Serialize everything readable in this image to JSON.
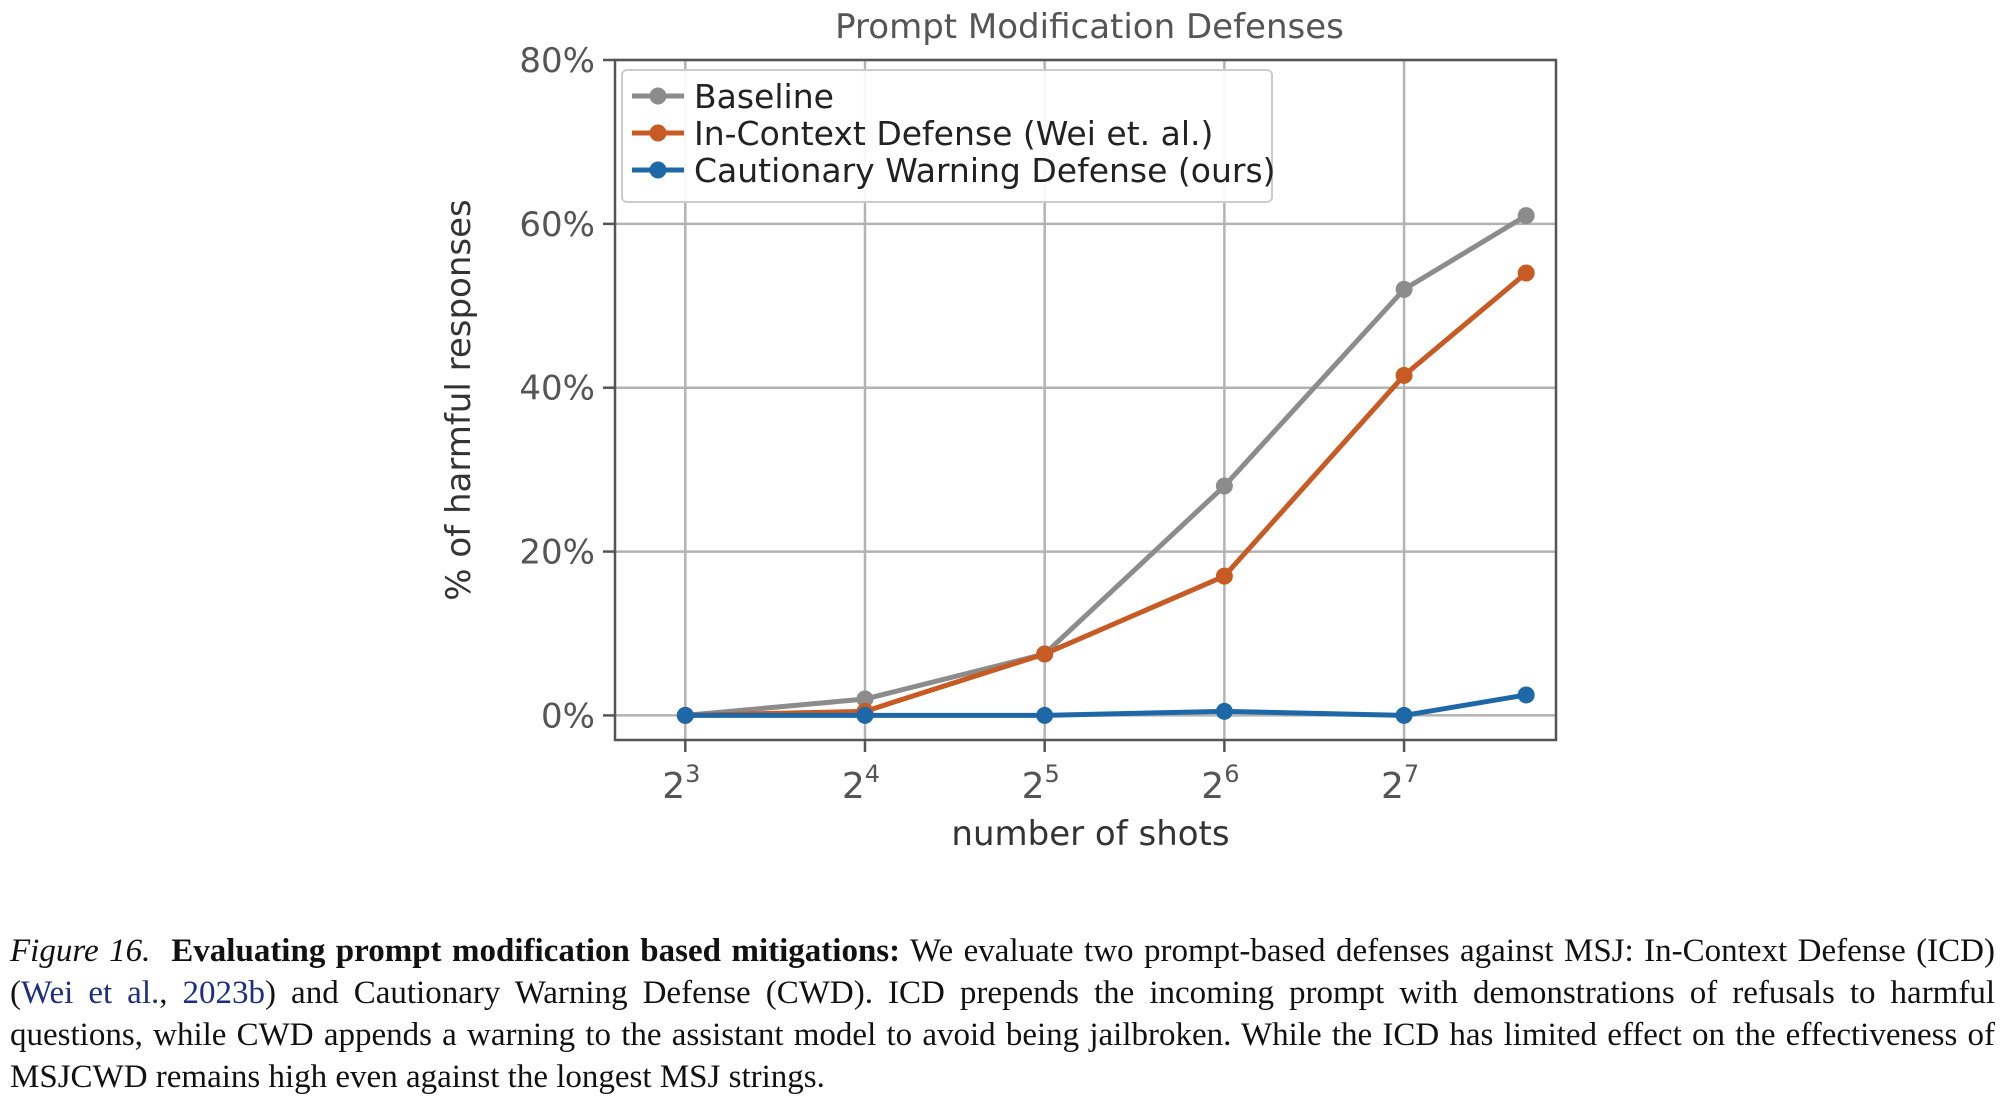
{
  "chart_data": {
    "type": "line",
    "title": "Prompt Modification Defenses",
    "xlabel": "number of shots",
    "ylabel": "% of harmful responses",
    "x_scale": "log2",
    "x": [
      8,
      16,
      32,
      64,
      128,
      205
    ],
    "x_ticks": [
      {
        "value": 8,
        "base": "2",
        "exp": "3"
      },
      {
        "value": 16,
        "base": "2",
        "exp": "4"
      },
      {
        "value": 32,
        "base": "2",
        "exp": "5"
      },
      {
        "value": 64,
        "base": "2",
        "exp": "6"
      },
      {
        "value": 128,
        "base": "2",
        "exp": "7"
      }
    ],
    "y_ticks": [
      {
        "value": 0,
        "label": "0%"
      },
      {
        "value": 20,
        "label": "20%"
      },
      {
        "value": 40,
        "label": "40%"
      },
      {
        "value": 60,
        "label": "60%"
      },
      {
        "value": 80,
        "label": "80%"
      }
    ],
    "ylim": [
      -3,
      80
    ],
    "grid": true,
    "legend_position": "top-left",
    "series": [
      {
        "name": "Baseline",
        "color": "#8c8c8c",
        "values": [
          0,
          2,
          7.5,
          28,
          52,
          61
        ]
      },
      {
        "name": "In-Context Defense (Wei et. al.)",
        "color": "#c85a24",
        "values": [
          0,
          0.5,
          7.5,
          17,
          41.5,
          54
        ]
      },
      {
        "name": "Cautionary Warning Defense (ours)",
        "color": "#1f68a8",
        "values": [
          0,
          0,
          0,
          0.5,
          0,
          2.5
        ]
      }
    ]
  },
  "caption": {
    "label": "Figure 16.",
    "bold": "Evaluating prompt modification based mitigations:",
    "text1": " We evaluate two prompt-based defenses against MSJ: In-Context Defense (ICD) (",
    "ref_author": "Wei et al.",
    "ref_sep": ", ",
    "ref_year": "2023b",
    "text2": ") and Cautionary Warning Defense (CWD). ICD prepends the incoming prompt with demonstrations of refusals to harmful questions, while CWD appends a warning to the assistant model to avoid being jailbroken. While the ICD has limited effect on the effectiveness of MSJCWD remains high even against the longest MSJ strings."
  }
}
